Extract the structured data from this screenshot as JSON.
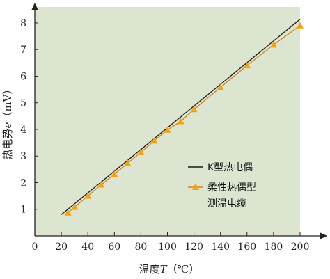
{
  "chart_data": {
    "type": "line",
    "xlabel": {
      "prefix": "温度",
      "var": "T",
      "unit": "（℃）"
    },
    "ylabel": {
      "prefix": "热电势",
      "var": "e",
      "unit": "（mV）"
    },
    "x_ticks": [
      "0",
      "20",
      "40",
      "60",
      "80",
      "100",
      "120",
      "140",
      "160",
      "180",
      "200"
    ],
    "y_ticks": [
      "1",
      "2",
      "3",
      "4",
      "5",
      "6",
      "7",
      "8"
    ],
    "xlim": [
      0,
      200
    ],
    "ylim": [
      0,
      8.6
    ],
    "plot_background": "#dbe5cf",
    "legend_position": "middle-right",
    "series": [
      {
        "name": "K型热电偶",
        "color": "#1a1a1a",
        "marker": "none",
        "x": [
          20,
          200
        ],
        "y": [
          0.8,
          8.14
        ]
      },
      {
        "name": "柔性热偶型测温电缆",
        "name_lines": [
          "柔性热偶型",
          "测温电缆"
        ],
        "color": "#f5a30c",
        "line_color": "#d87f1a",
        "marker": "triangle",
        "x": [
          25,
          30,
          40,
          50,
          60,
          70,
          80,
          90,
          100,
          110,
          120,
          140,
          160,
          180,
          200
        ],
        "y": [
          0.87,
          1.08,
          1.5,
          1.92,
          2.32,
          2.73,
          3.14,
          3.57,
          3.98,
          4.3,
          4.75,
          5.58,
          6.4,
          7.18,
          7.9
        ]
      }
    ]
  }
}
